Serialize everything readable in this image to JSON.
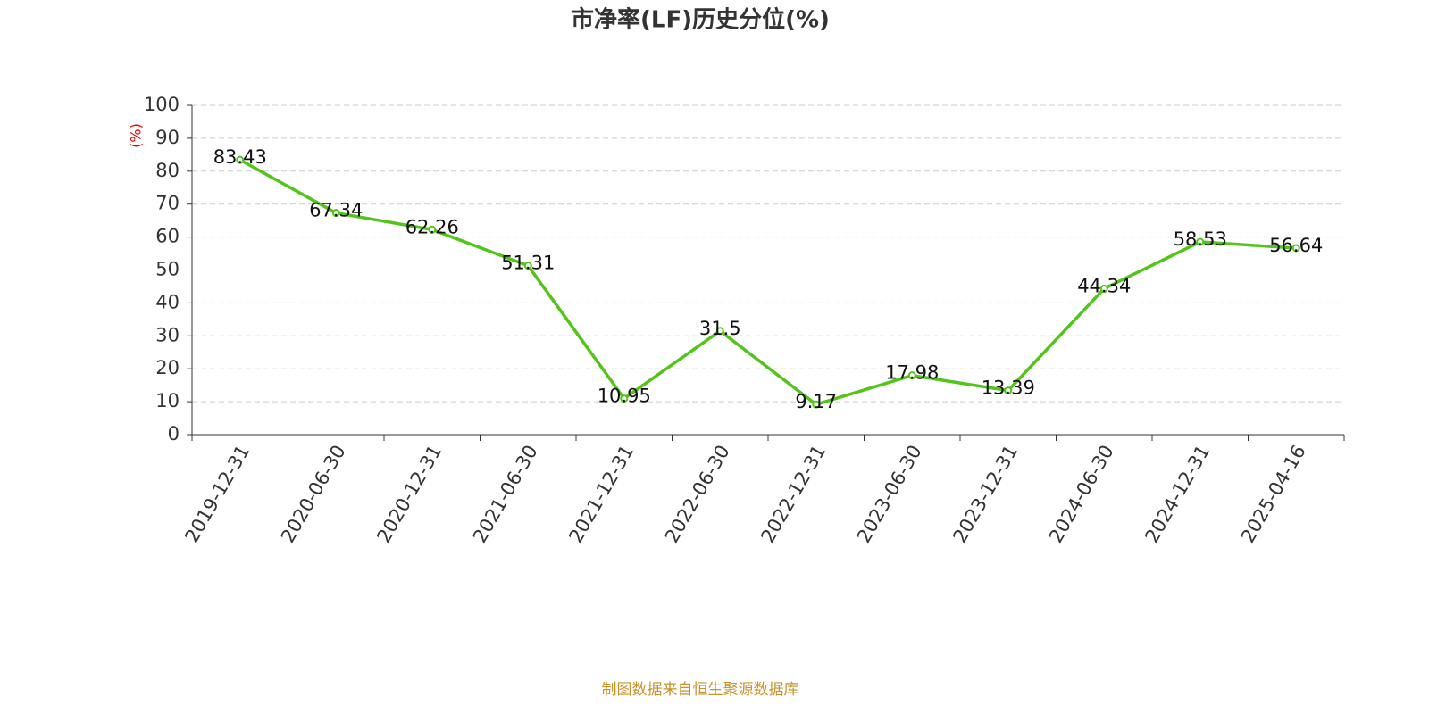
{
  "chart_data": {
    "type": "line",
    "title": "市净率(LF)历史分位(%)",
    "y_label": "(%)",
    "categories": [
      "2019-12-31",
      "2020-06-30",
      "2020-12-31",
      "2021-06-30",
      "2021-12-31",
      "2022-06-30",
      "2022-12-31",
      "2023-06-30",
      "2023-12-31",
      "2024-06-30",
      "2024-12-31",
      "2025-04-16"
    ],
    "series": [
      {
        "name": "市净率(LF)历史分位",
        "color": "#52c41a",
        "values": [
          83.43,
          67.34,
          62.26,
          51.31,
          10.95,
          31.5,
          9.17,
          17.98,
          13.39,
          44.34,
          58.53,
          56.64
        ]
      }
    ],
    "ylim": [
      0,
      100
    ],
    "yticks": [
      0,
      10,
      20,
      30,
      40,
      50,
      60,
      70,
      80,
      90,
      100
    ],
    "grid": true,
    "source": "制图数据来自恒生聚源数据库"
  }
}
